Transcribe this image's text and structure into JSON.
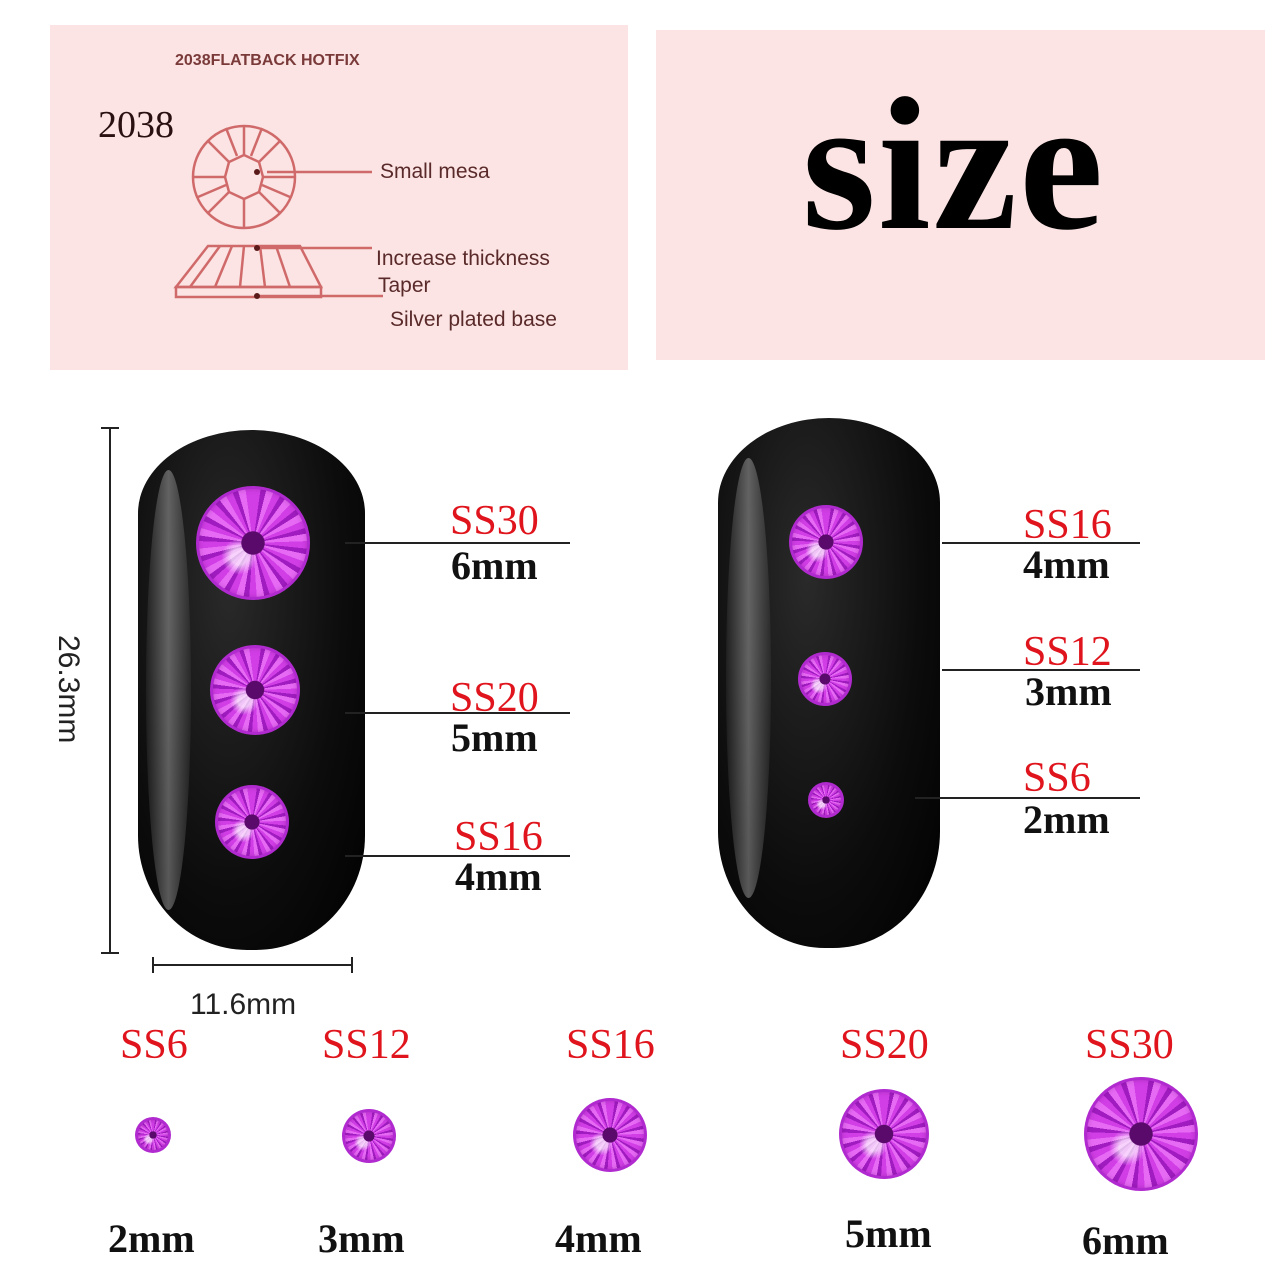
{
  "diagram": {
    "header": "2038FLATBACK HOTFIX",
    "model": "2038",
    "labels": [
      "Small mesa",
      "Increase thickness",
      "Taper",
      "Silver plated base"
    ],
    "color": "#d06a6a"
  },
  "title": "size",
  "dimensions": {
    "height": "26.3mm",
    "width": "11.6mm"
  },
  "left_nail": [
    {
      "ss": "SS30",
      "mm": "6mm"
    },
    {
      "ss": "SS20",
      "mm": "5mm"
    },
    {
      "ss": "SS16",
      "mm": "4mm"
    }
  ],
  "right_nail": [
    {
      "ss": "SS16",
      "mm": "4mm"
    },
    {
      "ss": "SS12",
      "mm": "3mm"
    },
    {
      "ss": "SS6",
      "mm": "2mm"
    }
  ],
  "size_row": [
    {
      "ss": "SS6",
      "mm": "2mm"
    },
    {
      "ss": "SS12",
      "mm": "3mm"
    },
    {
      "ss": "SS16",
      "mm": "4mm"
    },
    {
      "ss": "SS20",
      "mm": "5mm"
    },
    {
      "ss": "SS30",
      "mm": "6mm"
    }
  ],
  "colors": {
    "label_red": "#e0141c",
    "gem": "#c030e0",
    "panel": "#fbe4e3"
  }
}
